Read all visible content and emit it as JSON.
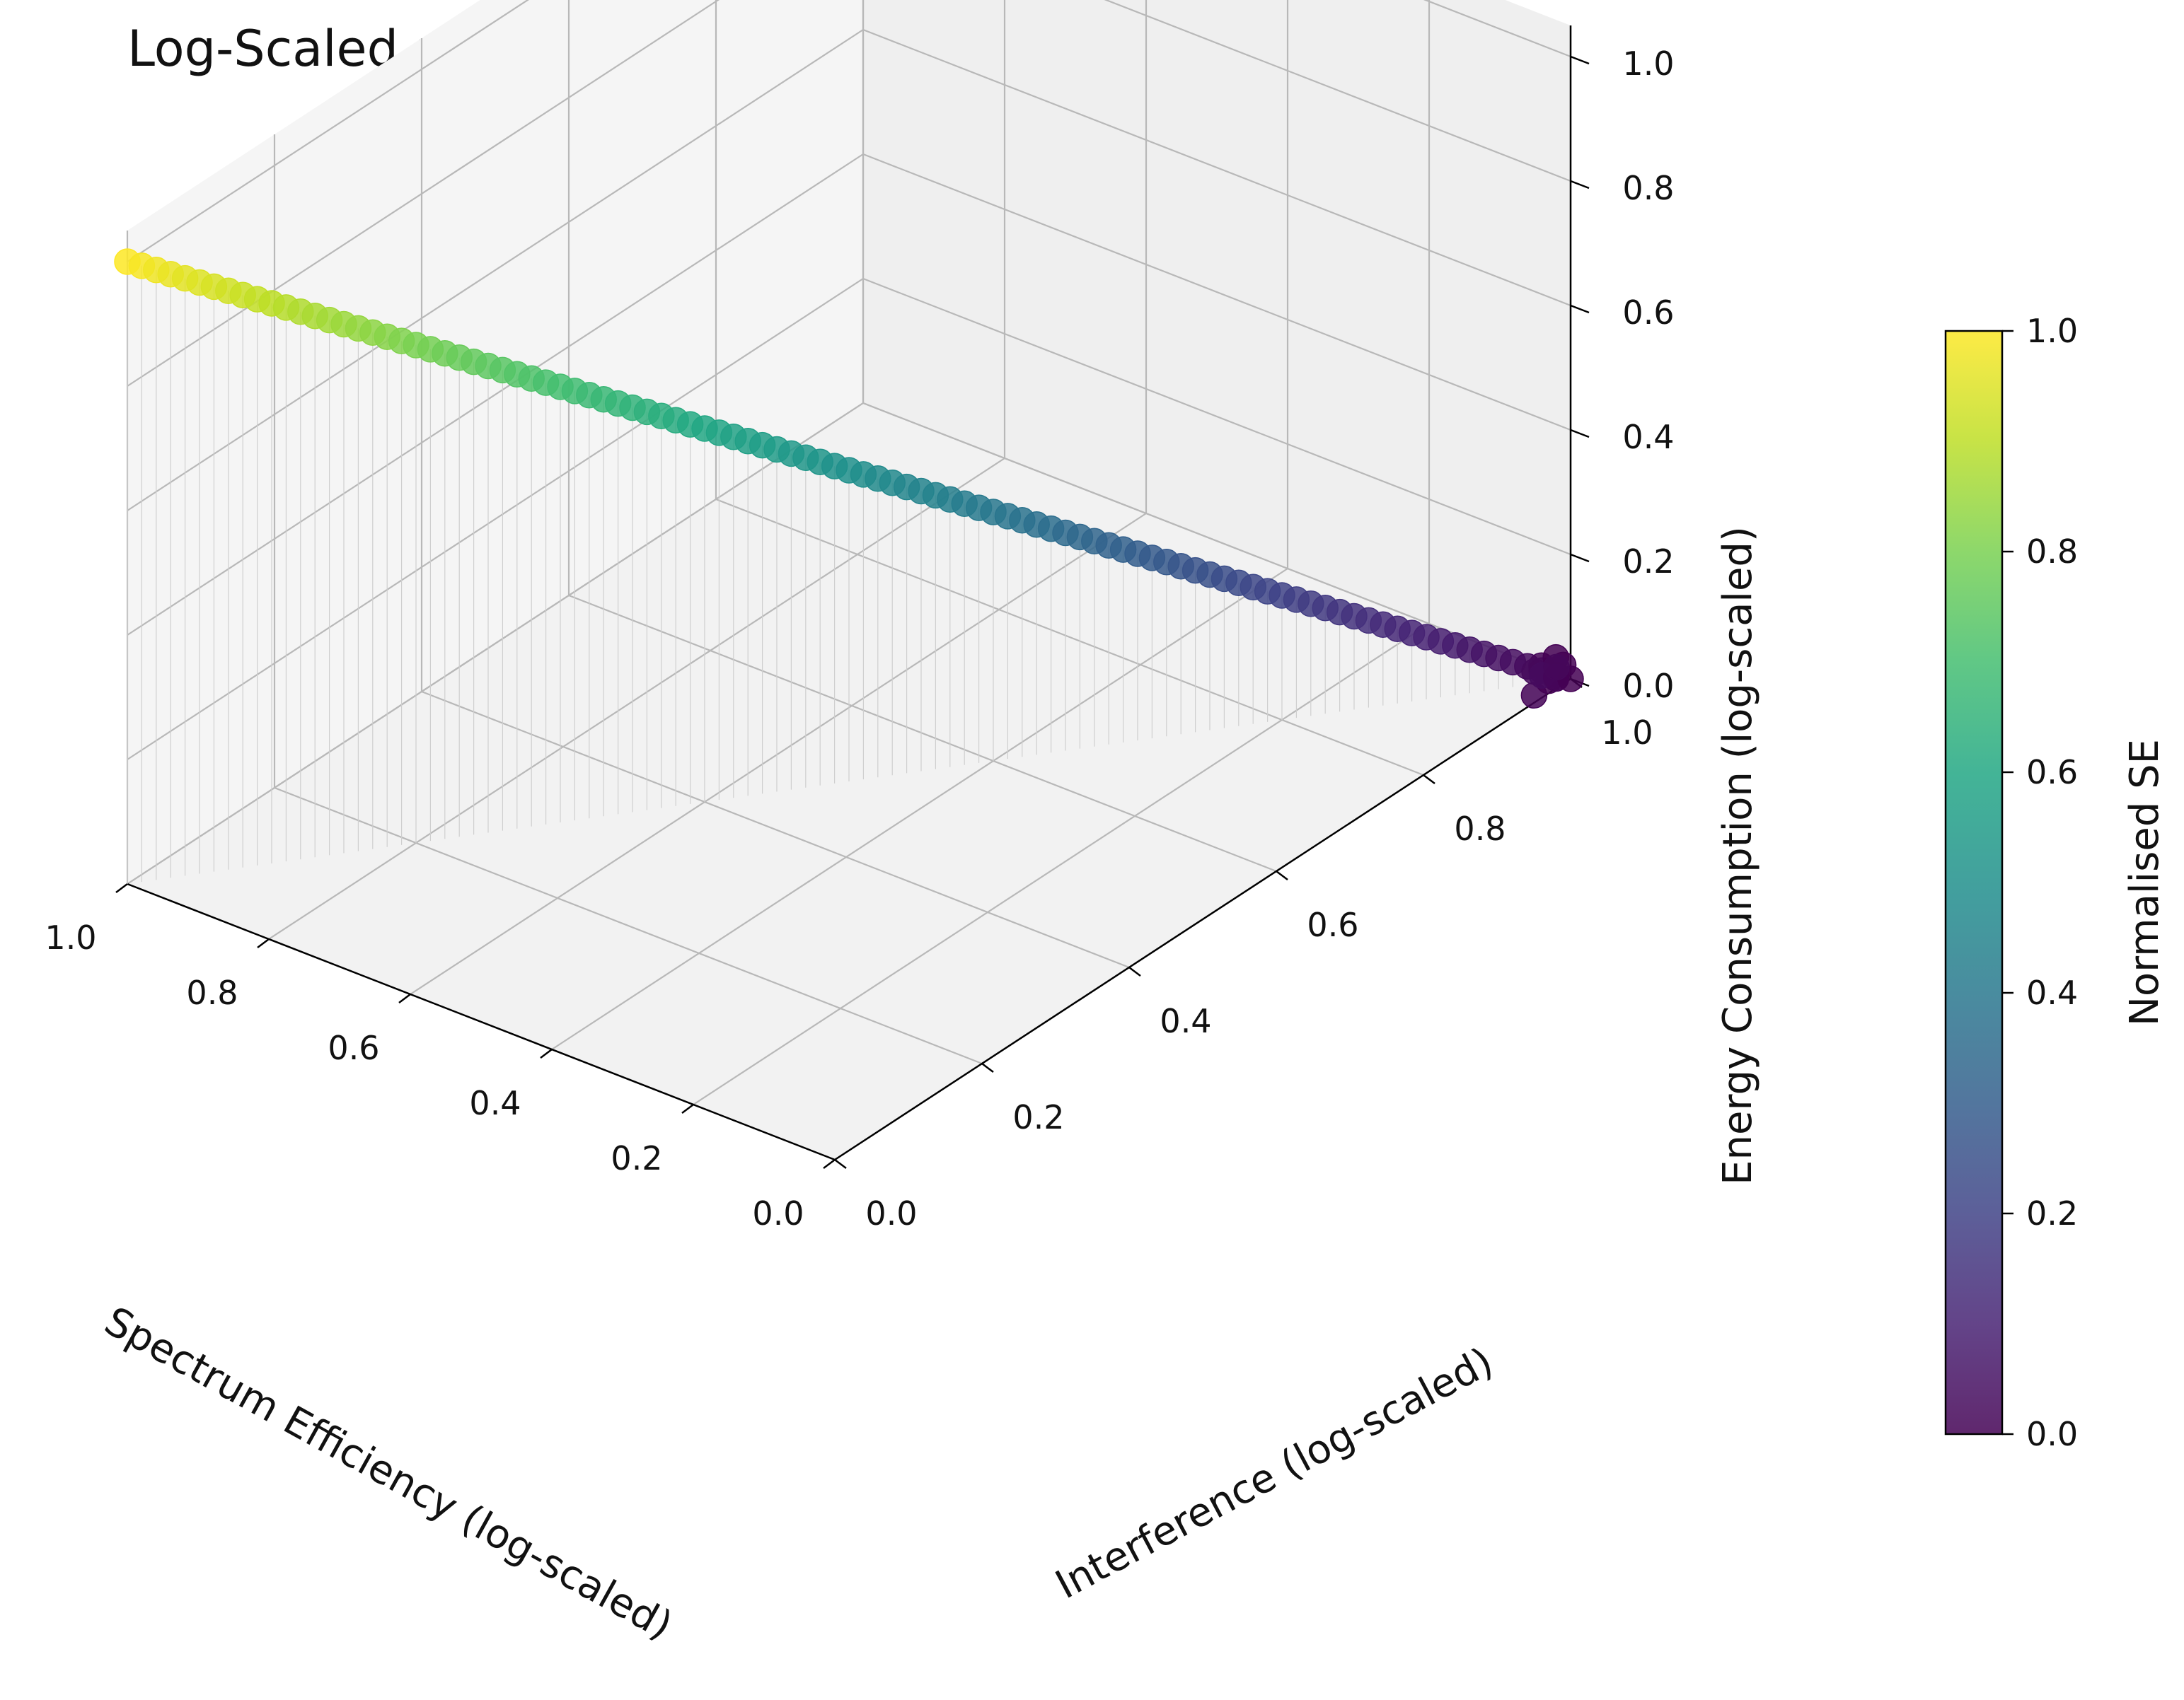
{
  "chart_data": {
    "type": "scatter3d",
    "title": "Log-Scaled and Normalised NSGA-II Pareto Front",
    "xlabel": "Spectrum Efficiency (log-scaled)",
    "ylabel": "Interference (log-scaled)",
    "zlabel": "Energy Consumption (log-scaled)",
    "xlim": [
      0,
      1
    ],
    "ylim": [
      0,
      1
    ],
    "zlim": [
      0,
      1
    ],
    "x_ticks": [
      "1.0",
      "0.8",
      "0.6",
      "0.4",
      "0.2",
      "0.0"
    ],
    "y_ticks": [
      "0.0",
      "0.2",
      "0.4",
      "0.6",
      "0.8",
      "1.0"
    ],
    "z_ticks": [
      "1.0",
      "0.8",
      "0.6",
      "0.4",
      "0.2",
      "0.0"
    ],
    "colorbar": {
      "label": "Normalised SE",
      "ticks": [
        "1.0",
        "0.8",
        "0.6",
        "0.4",
        "0.2",
        "0.0"
      ],
      "colormap": "viridis"
    },
    "description": "Points lie near the line x=1-y, z=x (SE=1 at top-left, SE=0 at bottom-right); colour encodes normalised SE; drop lines to z=0.",
    "points": [
      [
        1.0,
        0.0,
        1.0
      ],
      [
        0.99,
        0.01,
        0.99
      ],
      [
        0.98,
        0.02,
        0.98
      ],
      [
        0.97,
        0.03,
        0.97
      ],
      [
        0.96,
        0.04,
        0.96
      ],
      [
        0.95,
        0.05,
        0.95
      ],
      [
        0.94,
        0.06,
        0.94
      ],
      [
        0.93,
        0.07,
        0.93
      ],
      [
        0.92,
        0.08,
        0.92
      ],
      [
        0.91,
        0.09,
        0.91
      ],
      [
        0.9,
        0.1,
        0.9
      ],
      [
        0.89,
        0.11,
        0.89
      ],
      [
        0.88,
        0.12,
        0.88
      ],
      [
        0.87,
        0.13,
        0.87
      ],
      [
        0.86,
        0.14,
        0.86
      ],
      [
        0.85,
        0.15,
        0.85
      ],
      [
        0.84,
        0.16,
        0.84
      ],
      [
        0.83,
        0.17,
        0.83
      ],
      [
        0.82,
        0.18,
        0.82
      ],
      [
        0.81,
        0.19,
        0.81
      ],
      [
        0.8,
        0.2,
        0.8
      ],
      [
        0.79,
        0.21,
        0.79
      ],
      [
        0.78,
        0.22,
        0.78
      ],
      [
        0.77,
        0.23,
        0.77
      ],
      [
        0.76,
        0.24,
        0.76
      ],
      [
        0.75,
        0.25,
        0.75
      ],
      [
        0.74,
        0.26,
        0.74
      ],
      [
        0.73,
        0.27,
        0.73
      ],
      [
        0.72,
        0.28,
        0.72
      ],
      [
        0.71,
        0.29,
        0.71
      ],
      [
        0.7,
        0.3,
        0.7
      ],
      [
        0.69,
        0.31,
        0.69
      ],
      [
        0.68,
        0.32,
        0.68
      ],
      [
        0.67,
        0.33,
        0.67
      ],
      [
        0.66,
        0.34,
        0.66
      ],
      [
        0.65,
        0.35,
        0.65
      ],
      [
        0.64,
        0.36,
        0.64
      ],
      [
        0.63,
        0.37,
        0.63
      ],
      [
        0.62,
        0.38,
        0.62
      ],
      [
        0.61,
        0.39,
        0.61
      ],
      [
        0.6,
        0.4,
        0.6
      ],
      [
        0.59,
        0.41,
        0.59
      ],
      [
        0.58,
        0.42,
        0.58
      ],
      [
        0.57,
        0.43,
        0.57
      ],
      [
        0.56,
        0.44,
        0.56
      ],
      [
        0.55,
        0.45,
        0.55
      ],
      [
        0.54,
        0.46,
        0.54
      ],
      [
        0.53,
        0.47,
        0.53
      ],
      [
        0.52,
        0.48,
        0.52
      ],
      [
        0.51,
        0.49,
        0.51
      ],
      [
        0.5,
        0.5,
        0.5
      ],
      [
        0.49,
        0.51,
        0.49
      ],
      [
        0.48,
        0.52,
        0.48
      ],
      [
        0.47,
        0.53,
        0.47
      ],
      [
        0.46,
        0.54,
        0.46
      ],
      [
        0.45,
        0.55,
        0.45
      ],
      [
        0.44,
        0.56,
        0.44
      ],
      [
        0.43,
        0.57,
        0.43
      ],
      [
        0.42,
        0.58,
        0.42
      ],
      [
        0.41,
        0.59,
        0.41
      ],
      [
        0.4,
        0.6,
        0.4
      ],
      [
        0.39,
        0.61,
        0.39
      ],
      [
        0.38,
        0.62,
        0.38
      ],
      [
        0.37,
        0.63,
        0.37
      ],
      [
        0.36,
        0.64,
        0.36
      ],
      [
        0.35,
        0.65,
        0.35
      ],
      [
        0.34,
        0.66,
        0.34
      ],
      [
        0.33,
        0.67,
        0.33
      ],
      [
        0.32,
        0.68,
        0.32
      ],
      [
        0.31,
        0.69,
        0.31
      ],
      [
        0.3,
        0.7,
        0.3
      ],
      [
        0.29,
        0.71,
        0.29
      ],
      [
        0.28,
        0.72,
        0.28
      ],
      [
        0.27,
        0.73,
        0.27
      ],
      [
        0.26,
        0.74,
        0.26
      ],
      [
        0.25,
        0.75,
        0.25
      ],
      [
        0.24,
        0.76,
        0.24
      ],
      [
        0.23,
        0.77,
        0.23
      ],
      [
        0.22,
        0.78,
        0.22
      ],
      [
        0.21,
        0.79,
        0.21
      ],
      [
        0.2,
        0.8,
        0.2
      ],
      [
        0.19,
        0.81,
        0.19
      ],
      [
        0.18,
        0.82,
        0.18
      ],
      [
        0.17,
        0.83,
        0.17
      ],
      [
        0.16,
        0.84,
        0.16
      ],
      [
        0.15,
        0.85,
        0.15
      ],
      [
        0.14,
        0.86,
        0.14
      ],
      [
        0.13,
        0.87,
        0.13
      ],
      [
        0.12,
        0.88,
        0.12
      ],
      [
        0.11,
        0.89,
        0.11
      ],
      [
        0.1,
        0.9,
        0.1
      ],
      [
        0.09,
        0.91,
        0.09
      ],
      [
        0.08,
        0.92,
        0.08
      ],
      [
        0.07,
        0.93,
        0.07
      ],
      [
        0.06,
        0.94,
        0.06
      ],
      [
        0.05,
        0.95,
        0.05
      ],
      [
        0.04,
        0.96,
        0.04
      ],
      [
        0.03,
        0.97,
        0.03
      ],
      [
        0.02,
        0.98,
        0.02
      ],
      [
        0.01,
        0.99,
        0.01
      ],
      [
        0.0,
        1.0,
        0.0
      ],
      [
        0.005,
        0.985,
        0.01
      ],
      [
        0.0,
        0.97,
        0.02
      ],
      [
        0.015,
        0.995,
        0.0
      ],
      [
        0.0,
        0.99,
        0.03
      ],
      [
        0.01,
        0.96,
        0.0
      ],
      [
        0.02,
        1.0,
        0.01
      ],
      [
        0.0,
        0.98,
        0.05
      ],
      [
        0.03,
        0.99,
        0.0
      ],
      [
        0.01,
        0.97,
        0.04
      ],
      [
        0.025,
        0.975,
        0.02
      ]
    ]
  }
}
